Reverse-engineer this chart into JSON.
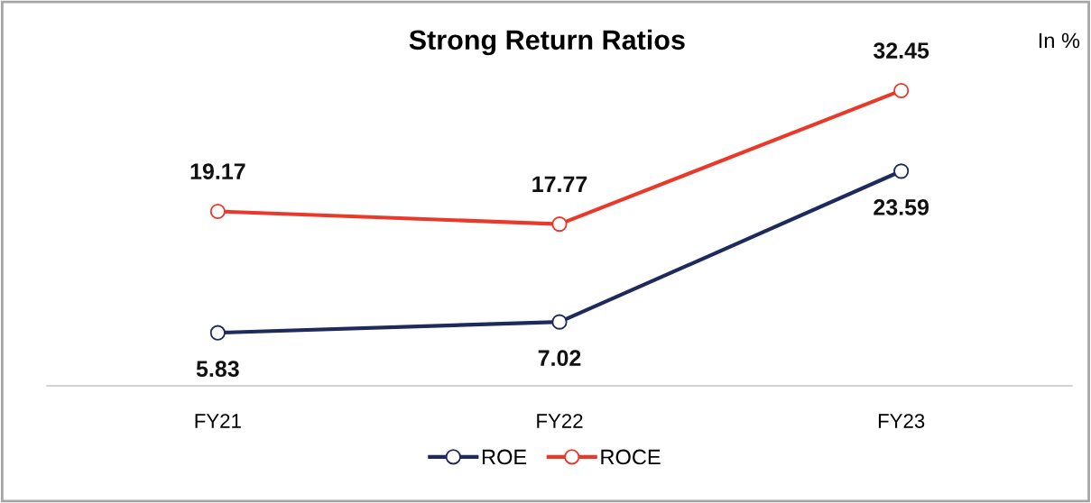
{
  "chart_data": {
    "type": "line",
    "title": "Strong Return Ratios",
    "annotations": [
      "In %"
    ],
    "categories": [
      "FY21",
      "FY22",
      "FY23"
    ],
    "series": [
      {
        "name": "ROE",
        "color": "#1f2a5c",
        "values": [
          5.83,
          7.02,
          23.59
        ]
      },
      {
        "name": "ROCE",
        "color": "#e8392a",
        "values": [
          19.17,
          17.77,
          32.45
        ]
      }
    ],
    "tick_labels": "x",
    "data_labels": true,
    "legend": "bottom",
    "marker": "circle",
    "line_style": "solid",
    "grid": false
  }
}
